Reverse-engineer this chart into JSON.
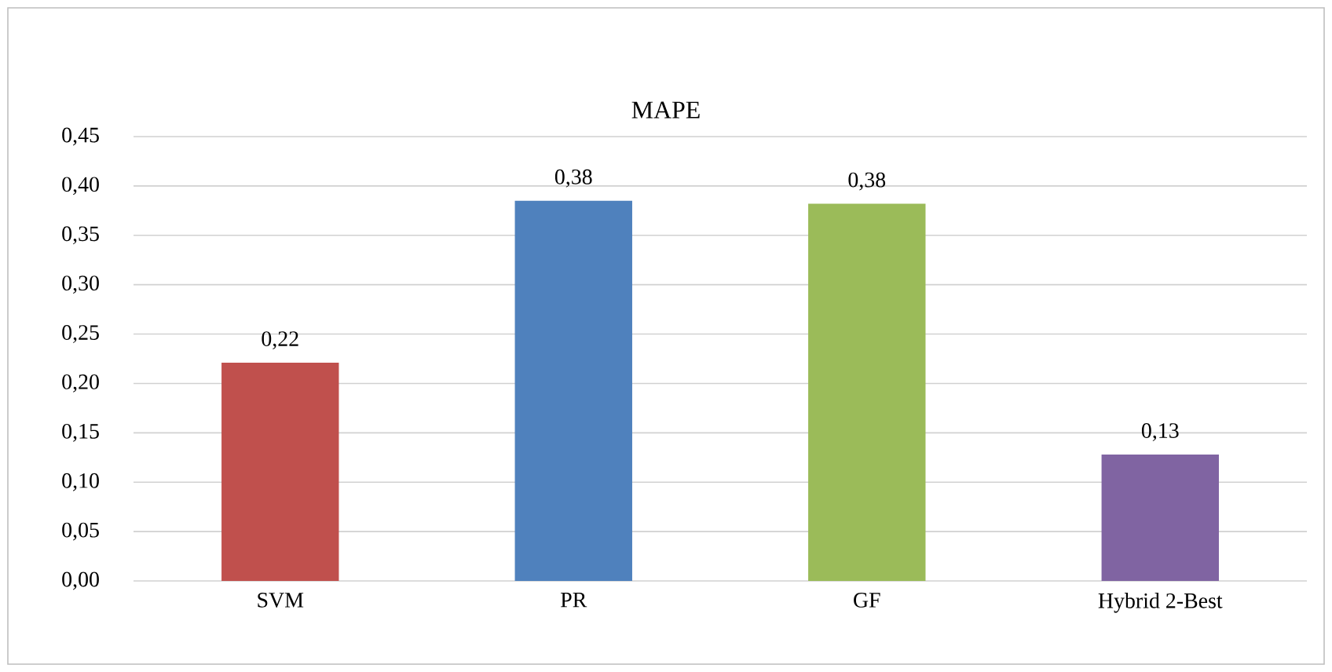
{
  "chart_data": {
    "type": "bar",
    "title": "MAPE",
    "categories": [
      "SVM",
      "PR",
      "GF",
      "Hybrid 2-Best"
    ],
    "values": [
      0.221,
      0.385,
      0.382,
      0.128
    ],
    "colors": [
      "#c0504d",
      "#4f81bd",
      "#9bbb59",
      "#8064a2"
    ],
    "value_labels": [
      "0,22",
      "0,38",
      "0,38",
      "0,13"
    ],
    "ylim": [
      0,
      0.45
    ],
    "yticks": [
      {
        "value": 0,
        "label": "0,00"
      },
      {
        "value": 0.05,
        "label": "0,05"
      },
      {
        "value": 0.1,
        "label": "0,10"
      },
      {
        "value": 0.15,
        "label": "0,15"
      },
      {
        "value": 0.2,
        "label": "0,20"
      },
      {
        "value": 0.25,
        "label": "0,25"
      },
      {
        "value": 0.3,
        "label": "0,30"
      },
      {
        "value": 0.35,
        "label": "0,35"
      },
      {
        "value": 0.4,
        "label": "0,40"
      },
      {
        "value": 0.45,
        "label": "0,45"
      }
    ],
    "grid": "y"
  }
}
